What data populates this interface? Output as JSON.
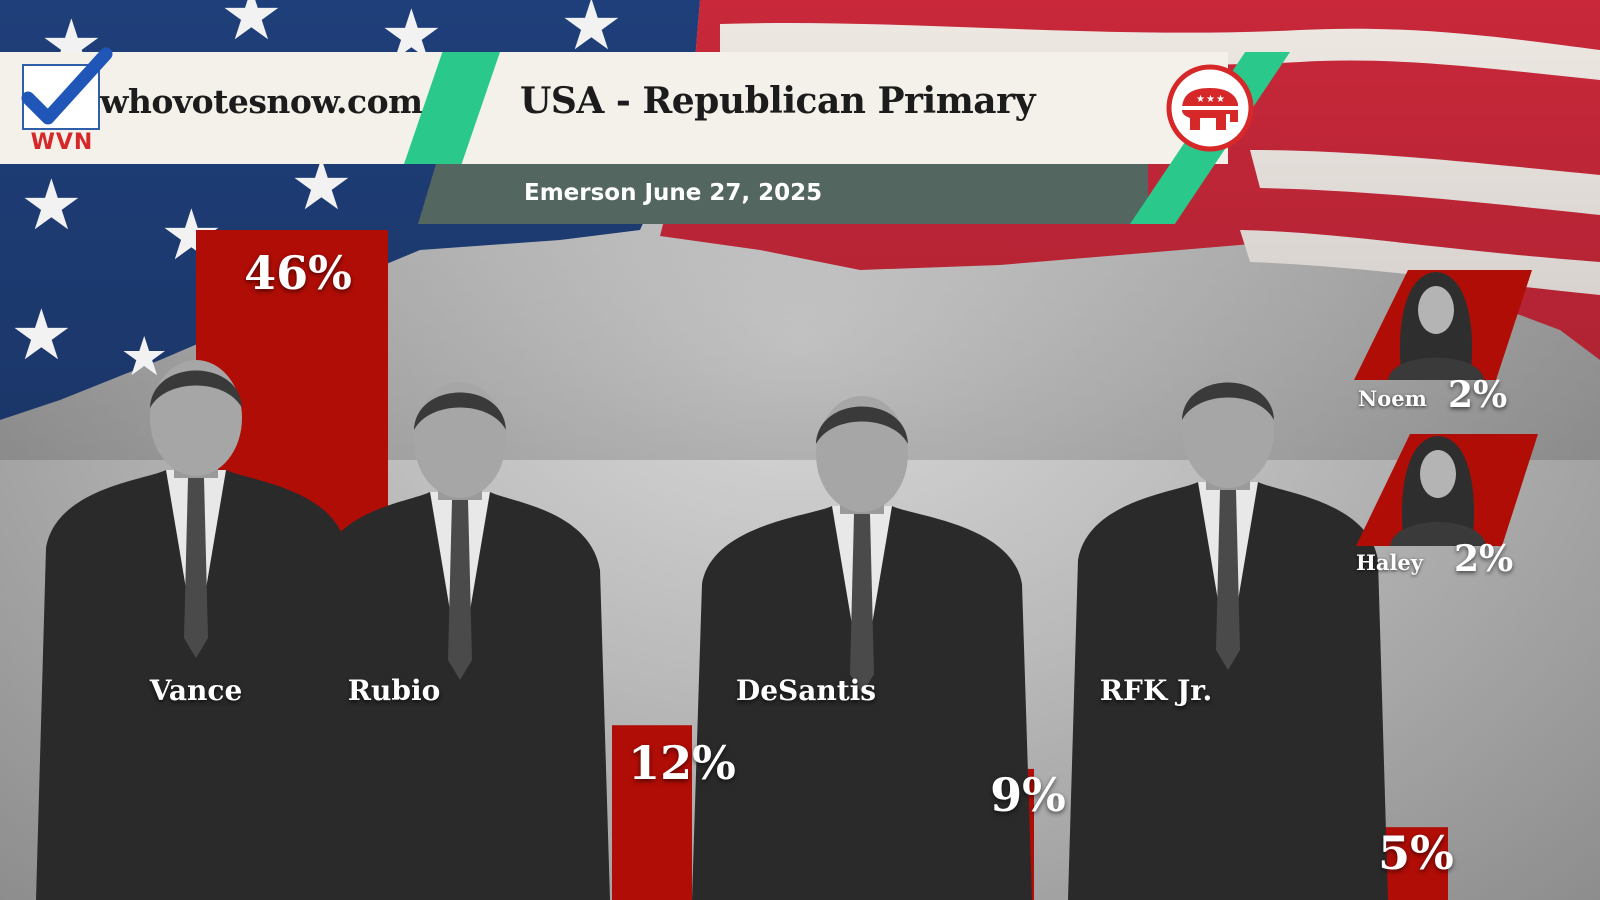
{
  "header": {
    "logo_text": "WVN",
    "site": "whovotesnow.com",
    "title": "USA - Republican Primary",
    "subtitle": "Emerson June 27, 2025",
    "logo_icon": "checkmark-icon",
    "party_icon": "gop-elephant-icon"
  },
  "colors": {
    "bar": "#b00d06",
    "accent_green": "#2ac88a",
    "header_bg": "#f4f0ea",
    "sub_bar": "#546660",
    "flag_red": "#c8283a",
    "flag_blue": "#1f3f7a"
  },
  "chart_data": {
    "type": "bar",
    "categories": [
      "Vance",
      "Rubio",
      "DeSantis",
      "RFK Jr.",
      "Noem",
      "Haley"
    ],
    "values": [
      46,
      12,
      9,
      5,
      2,
      2
    ],
    "value_labels": [
      "46%",
      "12%",
      "9%",
      "5%",
      "2%",
      "2%"
    ],
    "unit": "%",
    "title": "",
    "xlabel": "",
    "ylabel": "",
    "ylim": [
      0,
      46
    ],
    "grid": false,
    "legend": "none"
  }
}
